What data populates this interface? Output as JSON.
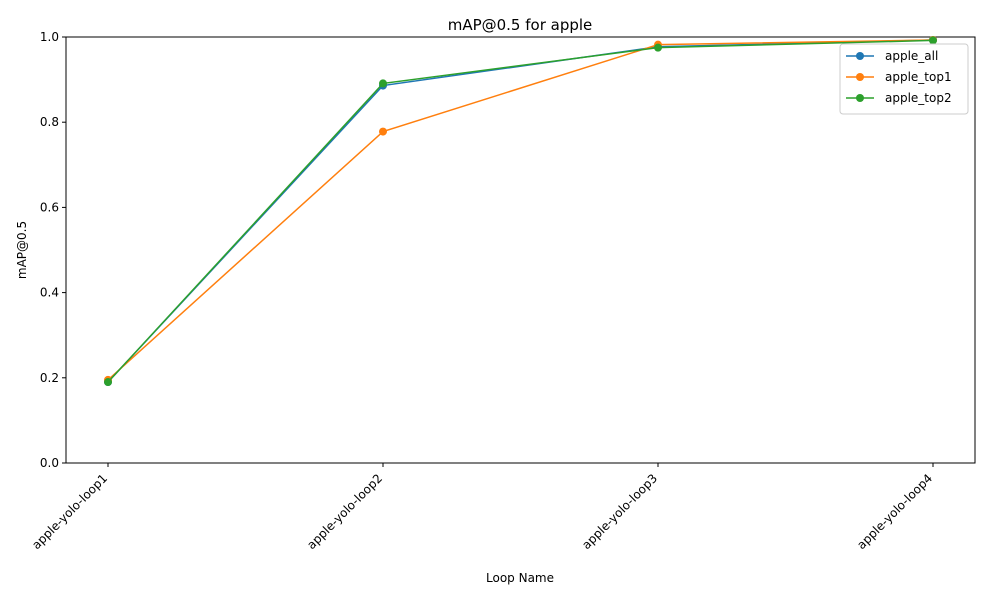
{
  "chart_data": {
    "type": "line",
    "title": "mAP@0.5 for apple",
    "xlabel": "Loop Name",
    "ylabel": "mAP@0.5",
    "categories": [
      "apple-yolo-loop1",
      "apple-yolo-loop2",
      "apple-yolo-loop3",
      "apple-yolo-loop4"
    ],
    "ylim": [
      0,
      1.0
    ],
    "yticks": [
      0.0,
      0.2,
      0.4,
      0.6,
      0.8,
      1.0
    ],
    "ytick_labels": [
      "0.0",
      "0.2",
      "0.4",
      "0.6",
      "0.8",
      "1.0"
    ],
    "grid": false,
    "legend_position": "top-right",
    "series": [
      {
        "name": "apple_all",
        "color": "#1f77b4",
        "values": [
          0.19,
          0.886,
          0.977,
          0.993
        ]
      },
      {
        "name": "apple_top1",
        "color": "#ff7f0e",
        "values": [
          0.195,
          0.778,
          0.982,
          0.993
        ]
      },
      {
        "name": "apple_top2",
        "color": "#2ca02c",
        "values": [
          0.19,
          0.891,
          0.975,
          0.992
        ]
      }
    ]
  }
}
